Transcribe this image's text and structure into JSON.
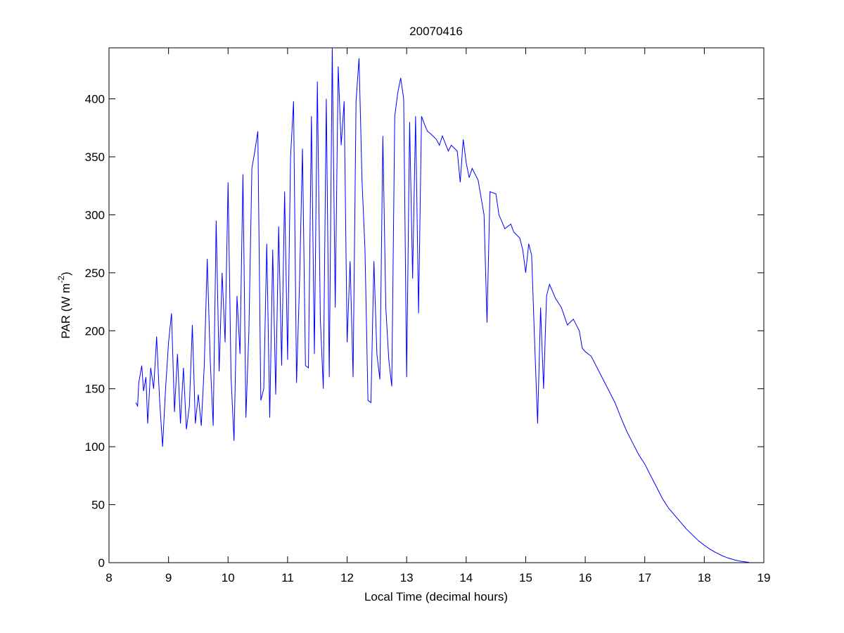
{
  "chart_data": {
    "type": "line",
    "title": "20070416",
    "xlabel": "Local Time (decimal hours)",
    "ylabel": [
      "PAR (W m",
      "-2",
      ")"
    ],
    "xlim": [
      8,
      19
    ],
    "xticks": [
      8,
      9,
      10,
      11,
      12,
      13,
      14,
      15,
      16,
      17,
      18,
      19
    ],
    "ylim": [
      0,
      444
    ],
    "yticks": [
      0,
      50,
      100,
      150,
      200,
      250,
      300,
      350,
      400
    ],
    "grid": false,
    "x": [
      8.45,
      8.48,
      8.5,
      8.55,
      8.58,
      8.62,
      8.65,
      8.7,
      8.75,
      8.8,
      8.85,
      8.9,
      8.95,
      9.0,
      9.05,
      9.1,
      9.15,
      9.2,
      9.25,
      9.3,
      9.35,
      9.4,
      9.45,
      9.5,
      9.55,
      9.6,
      9.65,
      9.7,
      9.75,
      9.8,
      9.85,
      9.9,
      9.95,
      10.0,
      10.05,
      10.1,
      10.15,
      10.2,
      10.25,
      10.3,
      10.35,
      10.4,
      10.45,
      10.5,
      10.55,
      10.6,
      10.65,
      10.7,
      10.75,
      10.8,
      10.85,
      10.9,
      10.95,
      11.0,
      11.05,
      11.1,
      11.15,
      11.2,
      11.25,
      11.3,
      11.35,
      11.4,
      11.45,
      11.5,
      11.55,
      11.6,
      11.65,
      11.7,
      11.75,
      11.8,
      11.85,
      11.9,
      11.95,
      12.0,
      12.05,
      12.1,
      12.15,
      12.2,
      12.25,
      12.3,
      12.35,
      12.4,
      12.45,
      12.5,
      12.55,
      12.6,
      12.65,
      12.7,
      12.75,
      12.8,
      12.85,
      12.9,
      12.95,
      13.0,
      13.05,
      13.1,
      13.15,
      13.2,
      13.25,
      13.3,
      13.35,
      13.4,
      13.5,
      13.55,
      13.6,
      13.7,
      13.75,
      13.85,
      13.9,
      13.95,
      14.0,
      14.05,
      14.1,
      14.2,
      14.3,
      14.35,
      14.4,
      14.5,
      14.55,
      14.65,
      14.75,
      14.8,
      14.9,
      14.95,
      15.0,
      15.05,
      15.1,
      15.15,
      15.2,
      15.25,
      15.3,
      15.35,
      15.4,
      15.5,
      15.6,
      15.7,
      15.8,
      15.9,
      15.95,
      16.0,
      16.1,
      16.2,
      16.3,
      16.4,
      16.5,
      16.6,
      16.7,
      16.8,
      16.9,
      17.0,
      17.1,
      17.2,
      17.3,
      17.4,
      17.5,
      17.6,
      17.7,
      17.8,
      17.9,
      18.0,
      18.1,
      18.2,
      18.3,
      18.4,
      18.5,
      18.6,
      18.7,
      18.75
    ],
    "series": [
      {
        "name": "PAR",
        "color": "#0000ff",
        "values": [
          138,
          135,
          155,
          170,
          148,
          160,
          120,
          168,
          150,
          195,
          140,
          100,
          150,
          190,
          215,
          130,
          180,
          120,
          168,
          115,
          135,
          205,
          120,
          145,
          118,
          170,
          262,
          175,
          118,
          295,
          165,
          250,
          190,
          328,
          160,
          105,
          230,
          180,
          335,
          125,
          200,
          340,
          355,
          372,
          140,
          150,
          275,
          125,
          270,
          145,
          290,
          170,
          320,
          175,
          350,
          398,
          155,
          240,
          357,
          170,
          168,
          385,
          180,
          415,
          210,
          150,
          400,
          160,
          444,
          220,
          428,
          360,
          398,
          190,
          260,
          160,
          398,
          435,
          330,
          270,
          140,
          138,
          260,
          180,
          158,
          368,
          220,
          175,
          152,
          385,
          405,
          418,
          400,
          160,
          380,
          245,
          385,
          215,
          385,
          378,
          372,
          370,
          365,
          360,
          368,
          355,
          360,
          355,
          328,
          365,
          345,
          332,
          340,
          330,
          300,
          207,
          320,
          318,
          300,
          288,
          292,
          285,
          280,
          270,
          250,
          275,
          265,
          190,
          120,
          220,
          150,
          230,
          240,
          228,
          220,
          205,
          210,
          200,
          185,
          182,
          178,
          168,
          158,
          148,
          138,
          125,
          113,
          103,
          93,
          85,
          75,
          65,
          55,
          47,
          41,
          35,
          29,
          24,
          19,
          15,
          11.5,
          8.5,
          6,
          4,
          2.5,
          1.3,
          0.6,
          0.3
        ]
      }
    ]
  }
}
